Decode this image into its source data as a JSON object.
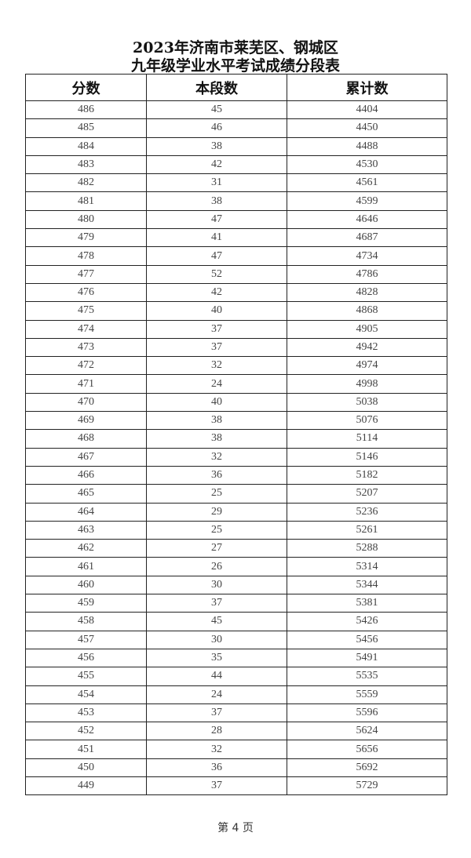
{
  "title_line1": "2023年济南市莱芜区、钢城区",
  "title_line2": "九年级学业水平考试成绩分段表",
  "headers": [
    "分数",
    "本段数",
    "累计数"
  ],
  "rows": [
    [
      "486",
      "45",
      "4404"
    ],
    [
      "485",
      "46",
      "4450"
    ],
    [
      "484",
      "38",
      "4488"
    ],
    [
      "483",
      "42",
      "4530"
    ],
    [
      "482",
      "31",
      "4561"
    ],
    [
      "481",
      "38",
      "4599"
    ],
    [
      "480",
      "47",
      "4646"
    ],
    [
      "479",
      "41",
      "4687"
    ],
    [
      "478",
      "47",
      "4734"
    ],
    [
      "477",
      "52",
      "4786"
    ],
    [
      "476",
      "42",
      "4828"
    ],
    [
      "475",
      "40",
      "4868"
    ],
    [
      "474",
      "37",
      "4905"
    ],
    [
      "473",
      "37",
      "4942"
    ],
    [
      "472",
      "32",
      "4974"
    ],
    [
      "471",
      "24",
      "4998"
    ],
    [
      "470",
      "40",
      "5038"
    ],
    [
      "469",
      "38",
      "5076"
    ],
    [
      "468",
      "38",
      "5114"
    ],
    [
      "467",
      "32",
      "5146"
    ],
    [
      "466",
      "36",
      "5182"
    ],
    [
      "465",
      "25",
      "5207"
    ],
    [
      "464",
      "29",
      "5236"
    ],
    [
      "463",
      "25",
      "5261"
    ],
    [
      "462",
      "27",
      "5288"
    ],
    [
      "461",
      "26",
      "5314"
    ],
    [
      "460",
      "30",
      "5344"
    ],
    [
      "459",
      "37",
      "5381"
    ],
    [
      "458",
      "45",
      "5426"
    ],
    [
      "457",
      "30",
      "5456"
    ],
    [
      "456",
      "35",
      "5491"
    ],
    [
      "455",
      "44",
      "5535"
    ],
    [
      "454",
      "24",
      "5559"
    ],
    [
      "453",
      "37",
      "5596"
    ],
    [
      "452",
      "28",
      "5624"
    ],
    [
      "451",
      "32",
      "5656"
    ],
    [
      "450",
      "36",
      "5692"
    ],
    [
      "449",
      "37",
      "5729"
    ]
  ],
  "footer": "第 4 页"
}
